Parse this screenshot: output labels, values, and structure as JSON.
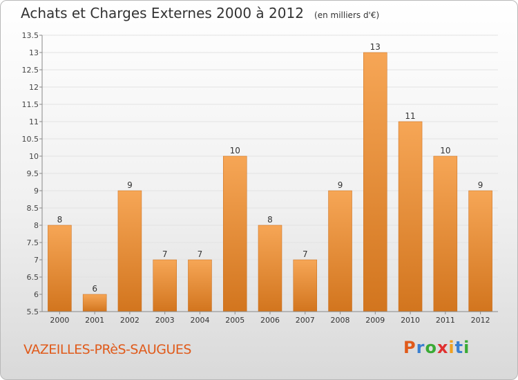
{
  "title": "Achats et Charges Externes 2000 à 2012",
  "subtitle": "(en milliers d'€)",
  "commune": "VAZEILLES-PRèS-SAUGUES",
  "logo": {
    "text": "Proxiti",
    "letter_colors": [
      "#e05a1a",
      "#3a7fd0",
      "#3aaa35",
      "#e03030",
      "#f0a020",
      "#3a7fd0",
      "#3aaa35"
    ]
  },
  "colors": {
    "bar_top": "#f6a656",
    "bar_bottom": "#d2751e",
    "axis": "#888888",
    "grid": "#e2e2e2",
    "commune": "#e05a1a"
  },
  "chart_data": {
    "type": "bar",
    "categories": [
      "2000",
      "2001",
      "2002",
      "2003",
      "2004",
      "2005",
      "2006",
      "2007",
      "2008",
      "2009",
      "2010",
      "2011",
      "2012"
    ],
    "values": [
      8,
      6,
      9,
      7,
      7,
      10,
      8,
      7,
      9,
      13,
      11,
      10,
      9
    ],
    "data_labels": [
      "8",
      "6",
      "9",
      "7",
      "7",
      "10",
      "8",
      "7",
      "9",
      "13",
      "11",
      "10",
      "9"
    ],
    "ylim": [
      5.5,
      13.5
    ],
    "yticks": [
      5.5,
      6,
      6.5,
      7,
      7.5,
      8,
      8.5,
      9,
      9.5,
      10,
      10.5,
      11,
      11.5,
      12,
      12.5,
      13,
      13.5
    ],
    "ytick_labels": [
      "5.5",
      "6",
      "6.5",
      "7",
      "7.5",
      "8",
      "8.5",
      "9",
      "9.5",
      "10",
      "10.5",
      "11",
      "11.5",
      "12",
      "12.5",
      "13",
      "13.5"
    ],
    "grid": true,
    "legend": "none"
  }
}
